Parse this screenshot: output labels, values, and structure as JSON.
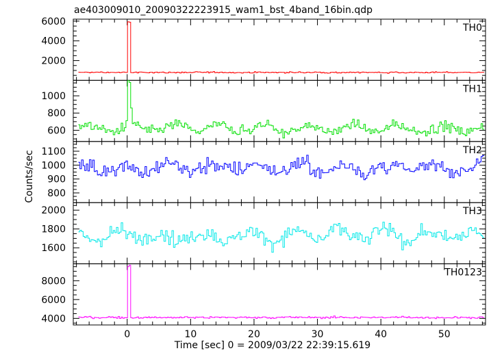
{
  "chart_data": {
    "type": "line",
    "title": "ae403009010_20090322223915_wam1_bst_4band_16bin.qdp",
    "xlabel": "Time [sec] 0 = 2009/03/22 22:39:15.619",
    "ylabel": "Counts/sec",
    "xlim": [
      -8.5,
      56.5
    ],
    "xticks": [
      0,
      10,
      20,
      30,
      40,
      50
    ],
    "grid": false,
    "shared_x": true,
    "panels": [
      {
        "name": "TH0",
        "color": "#ff0000",
        "ylim": [
          0,
          6200
        ],
        "yticks": [
          2000,
          4000,
          6000
        ],
        "baseline": 800,
        "noise": 60,
        "wave": 0,
        "burst": {
          "start": 0.0,
          "peak": 5900,
          "plateau_end": 0.3,
          "tail_value": 3700,
          "end": 0.5
        }
      },
      {
        "name": "TH1",
        "color": "#00e000",
        "ylim": [
          470,
          1180
        ],
        "yticks": [
          600,
          800,
          1000
        ],
        "baseline": 620,
        "noise": 55,
        "wave": 40,
        "burst": {
          "start": 0.0,
          "peak": 1150,
          "plateau_end": 0.3,
          "tail_value": 850,
          "end": 0.6
        }
      },
      {
        "name": "TH2",
        "color": "#0000ff",
        "ylim": [
          730,
          1170
        ],
        "yticks": [
          800,
          900,
          1000,
          1100
        ],
        "baseline": 980,
        "noise": 55,
        "wave": 30,
        "burst": null
      },
      {
        "name": "TH3",
        "color": "#00e8e8",
        "ylim": [
          1430,
          2080
        ],
        "yticks": [
          1600,
          1800,
          2000
        ],
        "baseline": 1730,
        "noise": 80,
        "wave": 50,
        "burst": null
      },
      {
        "name": "TH0123",
        "color": "#ff00ff",
        "ylim": [
          3300,
          9800
        ],
        "yticks": [
          4000,
          6000,
          8000
        ],
        "baseline": 4100,
        "noise": 100,
        "wave": 0,
        "burst": {
          "start": 0.0,
          "peak": 9600,
          "plateau_end": 0.3,
          "tail_value": 7400,
          "end": 0.5
        }
      }
    ],
    "bin_sec": 0.0625
  }
}
